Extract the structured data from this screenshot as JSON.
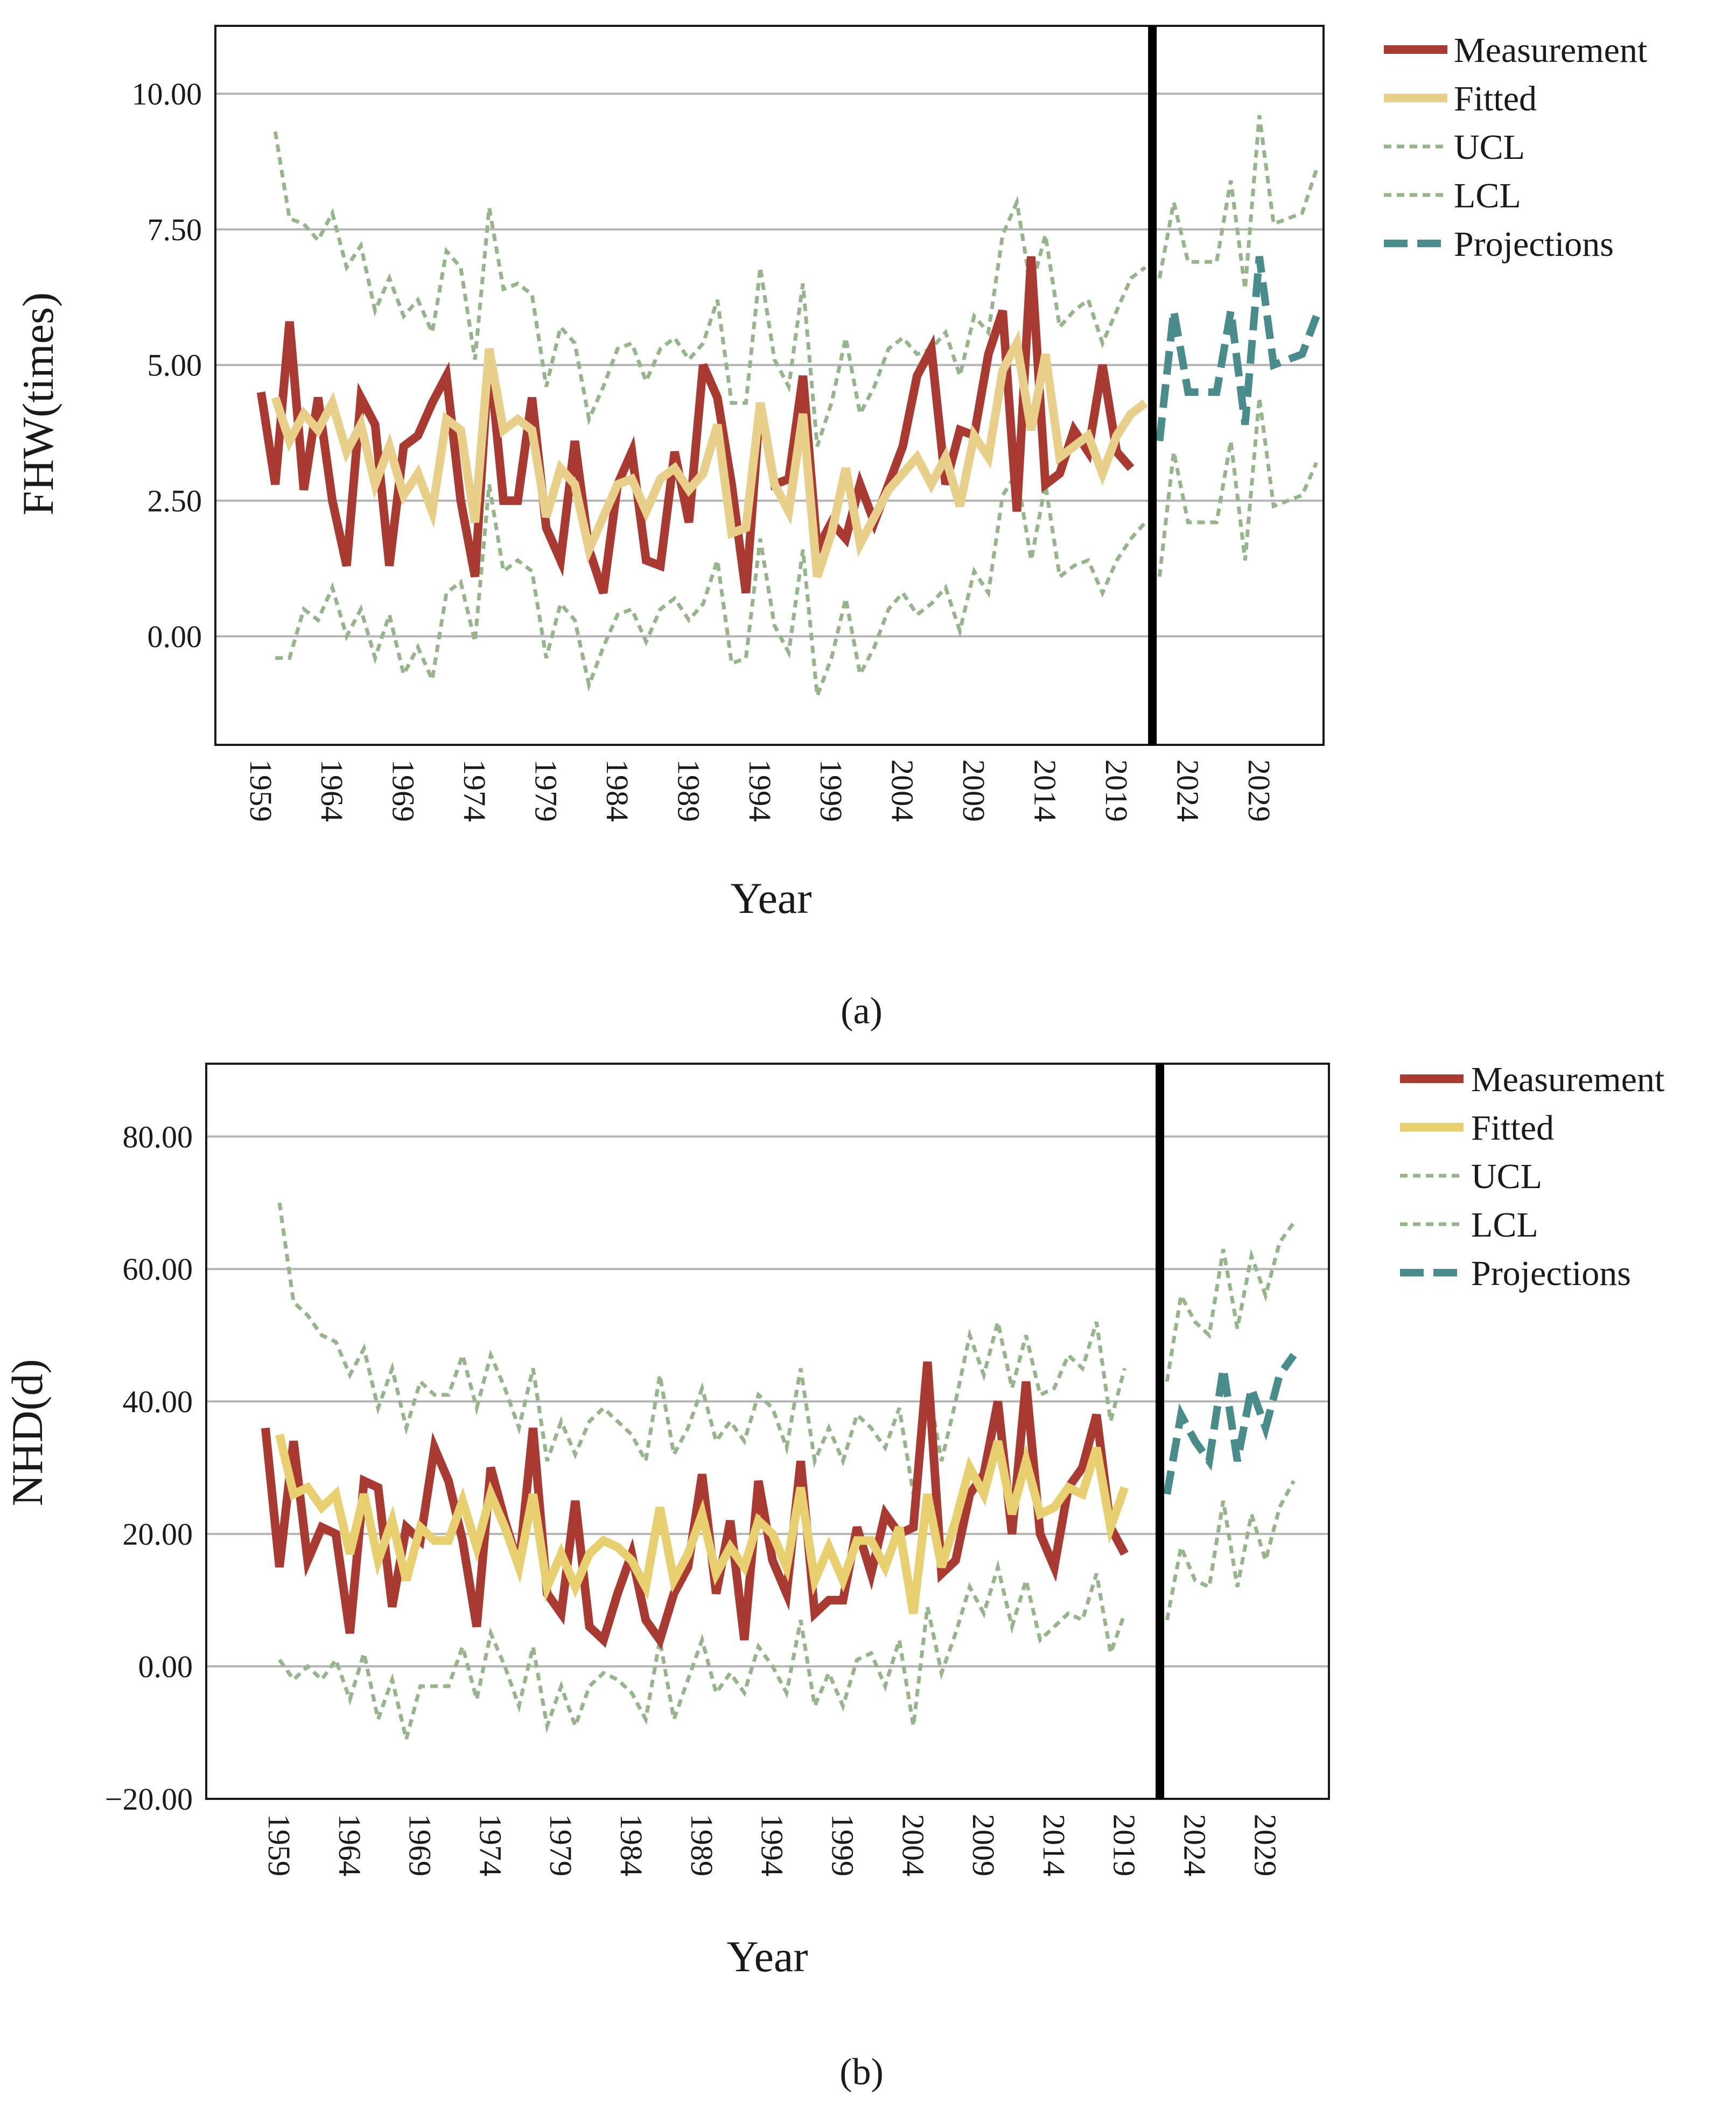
{
  "chart_data": [
    {
      "type": "line",
      "panel_label": "(a)",
      "xlabel": "Year",
      "ylabel": "FHW(times)",
      "ylim": [
        -2.0,
        11.25
      ],
      "xlim": [
        1955.8,
        2033.5
      ],
      "yticks": [
        0.0,
        2.5,
        5.0,
        7.5,
        10.0
      ],
      "ytick_labels": [
        "0.00",
        "2.50",
        "5.00",
        "7.50",
        "10.00"
      ],
      "xticks": [
        1959,
        1964,
        1969,
        1974,
        1979,
        1984,
        1989,
        1994,
        1999,
        2004,
        2009,
        2014,
        2019,
        2024,
        2029
      ],
      "xtick_labels": [
        "1959",
        "1964",
        "1969",
        "1974",
        "1979",
        "1984",
        "1989",
        "1994",
        "1999",
        "2004",
        "2009",
        "2014",
        "2019",
        "2024",
        "2029"
      ],
      "grid": true,
      "divider_x": 2021.5,
      "legend": [
        "Measurement",
        "Fitted",
        "UCL",
        "LCL",
        "Projections"
      ],
      "colors": {
        "Measurement": "#a83a32",
        "Fitted": "#e8d08b",
        "UCL": "#97b58c",
        "LCL": "#97b58c",
        "Projections": "#4a8c8c"
      },
      "series": [
        {
          "name": "Measurement",
          "x_start": 1959,
          "values": [
            4.5,
            2.8,
            5.8,
            2.7,
            4.4,
            2.5,
            1.3,
            4.4,
            3.9,
            1.3,
            3.5,
            3.7,
            4.3,
            4.8,
            2.5,
            1.1,
            5.2,
            2.5,
            2.5,
            4.4,
            2.0,
            1.4,
            3.6,
            1.6,
            0.8,
            2.8,
            3.4,
            1.4,
            1.3,
            3.4,
            2.1,
            5.0,
            4.4,
            2.8,
            0.8,
            4.3,
            2.8,
            2.9,
            4.8,
            1.6,
            2.1,
            1.8,
            2.8,
            2.1,
            2.8,
            3.5,
            4.8,
            5.3,
            2.8,
            3.8,
            3.7,
            5.2,
            6.0,
            2.3,
            7.0,
            2.8,
            3.0,
            3.8,
            3.4,
            5.0,
            3.4,
            3.1
          ]
        },
        {
          "name": "Fitted",
          "x_start": 1960,
          "values": [
            4.4,
            3.6,
            4.1,
            3.8,
            4.3,
            3.4,
            3.9,
            2.8,
            3.5,
            2.6,
            3.0,
            2.3,
            4.0,
            3.8,
            2.1,
            5.3,
            3.8,
            4.0,
            3.8,
            2.2,
            3.1,
            2.8,
            1.6,
            2.2,
            2.8,
            2.9,
            2.3,
            2.9,
            3.1,
            2.7,
            3.0,
            3.9,
            1.9,
            2.0,
            4.3,
            2.8,
            2.3,
            4.1,
            1.1,
            1.9,
            3.1,
            1.7,
            2.2,
            2.7,
            3.0,
            3.3,
            2.8,
            3.3,
            2.4,
            3.7,
            3.3,
            4.9,
            5.4,
            3.8,
            5.2,
            3.3,
            3.5,
            3.7,
            3.0,
            3.7,
            4.1,
            4.3
          ]
        },
        {
          "name": "UCL",
          "x_start": 1960,
          "values": [
            9.3,
            7.7,
            7.6,
            7.3,
            7.8,
            6.8,
            7.2,
            6.0,
            6.6,
            5.9,
            6.2,
            5.6,
            7.1,
            6.8,
            5.1,
            7.9,
            6.4,
            6.5,
            6.3,
            4.6,
            5.7,
            5.4,
            4.0,
            4.6,
            5.3,
            5.4,
            4.7,
            5.3,
            5.5,
            5.1,
            5.4,
            6.2,
            4.3,
            4.3,
            6.8,
            5.1,
            4.6,
            6.5,
            3.5,
            4.3,
            5.5,
            4.1,
            4.6,
            5.3,
            5.5,
            5.2,
            5.3,
            5.6,
            4.8,
            5.9,
            5.6,
            7.4,
            8.0,
            6.4,
            7.4,
            5.7,
            6.0,
            6.2,
            5.4,
            6.0,
            6.6,
            6.8
          ]
        },
        {
          "name": "LCL",
          "x_start": 1960,
          "values": [
            -0.4,
            -0.4,
            0.5,
            0.3,
            0.9,
            0.0,
            0.5,
            -0.4,
            0.4,
            -0.7,
            -0.2,
            -0.8,
            0.8,
            1.0,
            -0.1,
            2.8,
            1.2,
            1.4,
            1.2,
            -0.4,
            0.6,
            0.3,
            -0.9,
            -0.2,
            0.4,
            0.5,
            -0.1,
            0.5,
            0.7,
            0.3,
            0.6,
            1.4,
            -0.5,
            -0.4,
            1.8,
            0.2,
            -0.3,
            1.6,
            -1.1,
            -0.4,
            0.7,
            -0.7,
            -0.2,
            0.5,
            0.8,
            0.4,
            0.6,
            0.9,
            0.1,
            1.2,
            0.8,
            2.6,
            3.0,
            1.4,
            2.8,
            1.1,
            1.3,
            1.4,
            0.8,
            1.4,
            1.8,
            2.1
          ]
        },
        {
          "name": "Projections",
          "x_start": 2022,
          "values": [
            3.6,
            6.0,
            4.5,
            4.5,
            4.5,
            6.0,
            3.9,
            7.0,
            5.0,
            5.1,
            5.2,
            5.9
          ]
        },
        {
          "name": "UCL projection",
          "x_start": 2022,
          "values": [
            6.6,
            8.0,
            6.9,
            6.9,
            6.9,
            8.4,
            6.4,
            9.6,
            7.6,
            7.7,
            7.8,
            8.6
          ]
        },
        {
          "name": "LCL projection",
          "x_start": 2022,
          "values": [
            1.1,
            3.4,
            2.1,
            2.1,
            2.1,
            3.6,
            1.4,
            4.4,
            2.4,
            2.5,
            2.6,
            3.2
          ]
        }
      ]
    },
    {
      "type": "line",
      "panel_label": "(b)",
      "xlabel": "Year",
      "ylabel": "NHD(d)",
      "ylim": [
        -20.0,
        91.0
      ],
      "xlim": [
        1953.8,
        2033.5
      ],
      "yticks": [
        -20.0,
        0.0,
        20.0,
        40.0,
        60.0,
        80.0
      ],
      "ytick_labels": [
        "−20.00",
        "0.00",
        "20.00",
        "40.00",
        "60.00",
        "80.00"
      ],
      "xticks": [
        1959,
        1964,
        1969,
        1974,
        1979,
        1984,
        1989,
        1994,
        1999,
        2004,
        2009,
        2014,
        2019,
        2024,
        2029
      ],
      "xtick_labels": [
        "1959",
        "1964",
        "1969",
        "1974",
        "1979",
        "1984",
        "1989",
        "1994",
        "1999",
        "2004",
        "2009",
        "2014",
        "2019",
        "2024",
        "2029"
      ],
      "grid": true,
      "divider_x": 2021.5,
      "legend": [
        "Measurement",
        "Fitted",
        "UCL",
        "LCL",
        "Projections"
      ],
      "colors": {
        "Measurement": "#a83a32",
        "Fitted": "#e8d070",
        "UCL": "#97b58c",
        "LCL": "#97b58c",
        "Projections": "#4a8c8c"
      },
      "series": [
        {
          "name": "Measurement",
          "x_start": 1958,
          "values": [
            36,
            15,
            34,
            16,
            21,
            20,
            5,
            28,
            27,
            9,
            21,
            19,
            33,
            28,
            19,
            6,
            30,
            22,
            15,
            36,
            11,
            8,
            25,
            6,
            4,
            11,
            17,
            7,
            4,
            11,
            15,
            29,
            11,
            22,
            4,
            28,
            16,
            11,
            31,
            8,
            10,
            10,
            21,
            14,
            23,
            20,
            21,
            46,
            14,
            16,
            26,
            29,
            40,
            20,
            43,
            20,
            15,
            27,
            30,
            38,
            21,
            17
          ]
        },
        {
          "name": "Fitted",
          "x_start": 1959,
          "values": [
            35,
            26,
            27,
            24,
            26,
            17,
            26,
            16,
            22,
            13,
            21,
            19,
            19,
            25,
            18,
            26,
            21,
            15,
            26,
            12,
            17,
            12,
            17,
            19,
            18,
            16,
            12,
            24,
            13,
            17,
            23,
            14,
            18,
            15,
            22,
            20,
            15,
            27,
            13,
            18,
            13,
            19,
            19,
            15,
            21,
            8,
            26,
            15,
            22,
            30,
            26,
            34,
            23,
            31,
            23,
            24,
            27,
            26,
            33,
            21,
            27
          ]
        },
        {
          "name": "UCL",
          "x_start": 1959,
          "values": [
            70,
            55,
            53,
            50,
            49,
            44,
            48,
            39,
            45,
            36,
            43,
            41,
            41,
            47,
            39,
            47,
            42,
            36,
            45,
            31,
            37,
            32,
            37,
            39,
            37,
            35,
            31,
            44,
            32,
            36,
            42,
            34,
            37,
            34,
            41,
            39,
            33,
            45,
            31,
            36,
            31,
            38,
            36,
            33,
            39,
            26,
            43,
            31,
            40,
            50,
            44,
            52,
            42,
            50,
            41,
            42,
            47,
            45,
            52,
            37,
            45
          ]
        },
        {
          "name": "LCL",
          "x_start": 1959,
          "values": [
            1,
            -2,
            0,
            -2,
            1,
            -5,
            2,
            -8,
            -2,
            -11,
            -3,
            -3,
            -3,
            3,
            -5,
            5,
            0,
            -6,
            3,
            -9,
            -3,
            -9,
            -3,
            -1,
            -2,
            -4,
            -8,
            4,
            -8,
            -2,
            4,
            -4,
            -1,
            -4,
            3,
            0,
            -4,
            7,
            -6,
            -1,
            -6,
            1,
            2,
            -3,
            4,
            -9,
            9,
            -1,
            5,
            12,
            8,
            15,
            6,
            13,
            4,
            6,
            8,
            7,
            14,
            2,
            8
          ]
        },
        {
          "name": "Projections",
          "x_start": 2022,
          "values": [
            26,
            38,
            34,
            31,
            45,
            31,
            42,
            36,
            44,
            47
          ]
        },
        {
          "name": "UCL projection",
          "x_start": 2022,
          "values": [
            43,
            56,
            52,
            50,
            63,
            51,
            62,
            56,
            64,
            67
          ]
        },
        {
          "name": "LCL projection",
          "x_start": 2022,
          "values": [
            7,
            18,
            13,
            12,
            25,
            12,
            23,
            16,
            24,
            28
          ]
        }
      ]
    }
  ]
}
